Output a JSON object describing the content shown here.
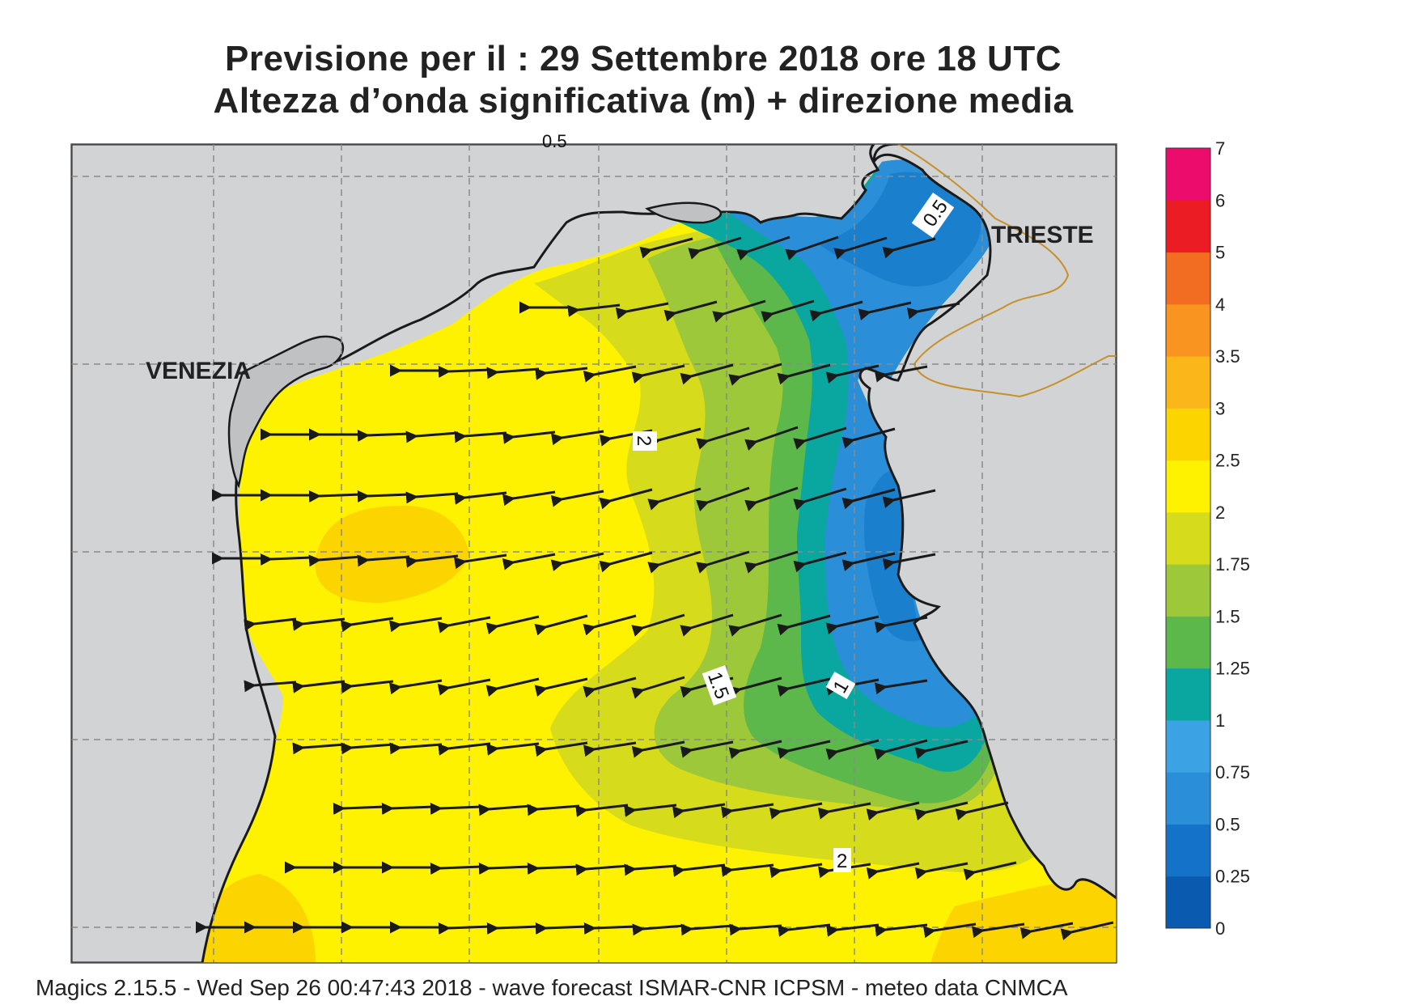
{
  "title_line1": "Previsione per il  :  29 Settembre 2018   ore 18 UTC",
  "title_line2": "Altezza d’onda significativa (m) + direzione media",
  "footer": "Magics 2.15.5 - Wed Sep 26 00:47:43 2018 - wave forecast  ISMAR-CNR  ICPSM - meteo data   CNMCA",
  "places": {
    "venezia": "VENEZIA",
    "trieste": "TRIESTE"
  },
  "contour_labels": [
    "0.5",
    "2",
    "1.5",
    "1",
    "2"
  ],
  "top_edge_label": "0.5",
  "legend": {
    "levels": [
      "0",
      "0.25",
      "0.5",
      "0.75",
      "1",
      "1.25",
      "1.5",
      "1.75",
      "2",
      "2.5",
      "3",
      "3.5",
      "4",
      "5",
      "6",
      "7"
    ],
    "colors": [
      "#0a5ab0",
      "#1473c8",
      "#2a8fd8",
      "#3ba3e4",
      "#0aa7a0",
      "#5cb84a",
      "#9cc83a",
      "#d6dc1c",
      "#fff200",
      "#fcd400",
      "#fbb61a",
      "#f8941f",
      "#f26d21",
      "#ec1c24",
      "#ec0c6c"
    ]
  },
  "colors": {
    "land": "#d1d3d4",
    "coast": "#1a1a1a",
    "border": "#c8902a",
    "grid": "#8a8a8a",
    "arrow": "#1a1a1a"
  }
}
